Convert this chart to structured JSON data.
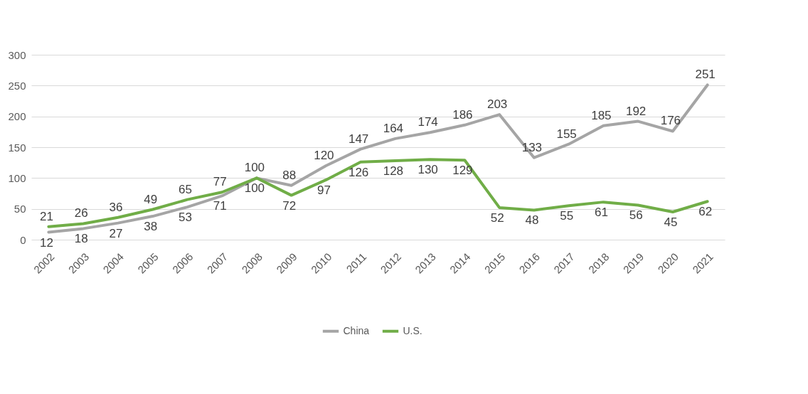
{
  "chart_data": {
    "type": "line",
    "categories": [
      "2002",
      "2003",
      "2004",
      "2005",
      "2006",
      "2007",
      "2008",
      "2009",
      "2010",
      "2011",
      "2012",
      "2013",
      "2014",
      "2015",
      "2016",
      "2017",
      "2018",
      "2019",
      "2020",
      "2021"
    ],
    "series": [
      {
        "name": "China",
        "color": "#a5a5a5",
        "values": [
          12,
          18,
          27,
          38,
          53,
          71,
          100,
          88,
          120,
          147,
          164,
          174,
          186,
          203,
          133,
          155,
          185,
          192,
          176,
          251
        ]
      },
      {
        "name": "U.S.",
        "color": "#70ad47",
        "values": [
          21,
          26,
          36,
          49,
          65,
          77,
          100,
          72,
          97,
          126,
          128,
          130,
          129,
          52,
          48,
          55,
          61,
          56,
          45,
          62
        ]
      }
    ],
    "ylim": [
      0,
      300
    ],
    "yticks": [
      0,
      50,
      100,
      150,
      200,
      250,
      300
    ],
    "grid": "y",
    "legend": "bottom",
    "data_labels": true,
    "marker": "none",
    "line_style": "solid"
  }
}
